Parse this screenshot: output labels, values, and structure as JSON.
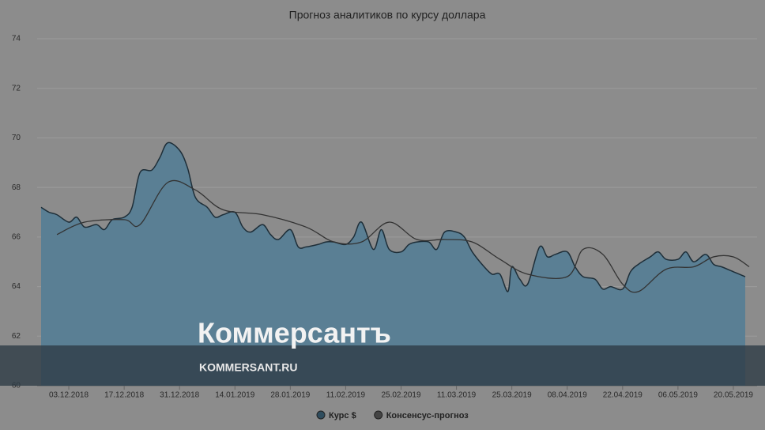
{
  "chart_data": {
    "type": "area_line",
    "title": "Прогноз аналитиков по курсу доллара",
    "xlim": [
      "25.11.2018",
      "26.05.2019"
    ],
    "xticks": [
      "03.12.2018",
      "17.12.2018",
      "31.12.2018",
      "14.01.2019",
      "28.01.2019",
      "11.02.2019",
      "25.02.2019",
      "11.03.2019",
      "25.03.2019",
      "08.04.2019",
      "22.04.2019",
      "06.05.2019",
      "20.05.2019"
    ],
    "ylim": [
      60,
      74
    ],
    "yticks": [
      60,
      62,
      64,
      66,
      68,
      70,
      72,
      74
    ],
    "grid": true,
    "series": [
      {
        "name": "Курс $",
        "color": "#5a7f94",
        "kind": "area",
        "x": [
          "26.11.2018",
          "28.11.2018",
          "30.11.2018",
          "03.12.2018",
          "05.12.2018",
          "07.12.2018",
          "10.12.2018",
          "12.12.2018",
          "14.12.2018",
          "17.12.2018",
          "19.12.2018",
          "21.12.2018",
          "24.12.2018",
          "26.12.2018",
          "28.12.2018",
          "31.12.2018",
          "02.01.2019",
          "04.01.2019",
          "07.01.2019",
          "09.01.2019",
          "11.01.2019",
          "14.01.2019",
          "16.01.2019",
          "18.01.2019",
          "21.01.2019",
          "23.01.2019",
          "25.01.2019",
          "28.01.2019",
          "30.01.2019",
          "01.02.2019",
          "04.02.2019",
          "06.02.2019",
          "08.02.2019",
          "11.02.2019",
          "13.02.2019",
          "15.02.2019",
          "18.02.2019",
          "20.02.2019",
          "22.02.2019",
          "25.02.2019",
          "27.02.2019",
          "01.03.2019",
          "04.03.2019",
          "06.03.2019",
          "08.03.2019",
          "11.03.2019",
          "13.03.2019",
          "15.03.2019",
          "18.03.2019",
          "20.03.2019",
          "22.03.2019",
          "24.03.2019",
          "25.03.2019",
          "27.03.2019",
          "29.03.2019",
          "01.04.2019",
          "03.04.2019",
          "05.04.2019",
          "08.04.2019",
          "10.04.2019",
          "12.04.2019",
          "15.04.2019",
          "17.04.2019",
          "19.04.2019",
          "22.04.2019",
          "24.04.2019",
          "26.04.2019",
          "29.04.2019",
          "01.05.2019",
          "03.05.2019",
          "06.05.2019",
          "08.05.2019",
          "10.05.2019",
          "13.05.2019",
          "15.05.2019",
          "17.05.2019",
          "20.05.2019",
          "23.05.2019"
        ],
        "values": [
          67.2,
          67.0,
          66.9,
          66.6,
          66.8,
          66.4,
          66.5,
          66.3,
          66.7,
          66.8,
          67.2,
          68.6,
          68.7,
          69.2,
          69.8,
          69.5,
          68.8,
          67.6,
          67.2,
          66.8,
          66.9,
          67.0,
          66.4,
          66.2,
          66.5,
          66.1,
          65.9,
          66.3,
          65.6,
          65.6,
          65.7,
          65.8,
          65.8,
          65.7,
          66.0,
          66.6,
          65.5,
          66.3,
          65.5,
          65.4,
          65.7,
          65.8,
          65.8,
          65.5,
          66.2,
          66.2,
          66.0,
          65.4,
          64.8,
          64.5,
          64.5,
          63.8,
          64.8,
          64.3,
          64.1,
          65.6,
          65.2,
          65.3,
          65.4,
          64.8,
          64.4,
          64.3,
          63.9,
          64.0,
          63.9,
          64.6,
          64.9,
          65.2,
          65.4,
          65.1,
          65.1,
          65.4,
          65.0,
          65.3,
          64.9,
          64.8,
          64.6,
          64.4
        ]
      },
      {
        "name": "Консенсус-прогноз",
        "color": "#333333",
        "kind": "line",
        "x": [
          "30.11.2018",
          "07.12.2018",
          "17.12.2018",
          "21.12.2018",
          "28.12.2018",
          "04.01.2019",
          "11.01.2019",
          "21.01.2019",
          "01.02.2019",
          "08.02.2019",
          "15.02.2019",
          "22.02.2019",
          "01.03.2019",
          "08.03.2019",
          "15.03.2019",
          "22.03.2019",
          "29.03.2019",
          "08.04.2019",
          "12.04.2019",
          "17.04.2019",
          "22.04.2019",
          "26.04.2019",
          "03.05.2019",
          "10.05.2019",
          "15.05.2019",
          "20.05.2019",
          "24.05.2019"
        ],
        "values": [
          66.1,
          66.6,
          66.7,
          66.5,
          68.2,
          67.9,
          67.1,
          66.9,
          66.4,
          65.8,
          65.8,
          66.6,
          65.9,
          65.9,
          65.8,
          65.1,
          64.5,
          64.4,
          65.5,
          65.3,
          64.1,
          63.8,
          64.7,
          64.8,
          65.2,
          65.2,
          64.8
        ]
      }
    ]
  },
  "watermark": {
    "brand": "Коммерсантъ",
    "site": "KOMMERSANT.RU"
  }
}
